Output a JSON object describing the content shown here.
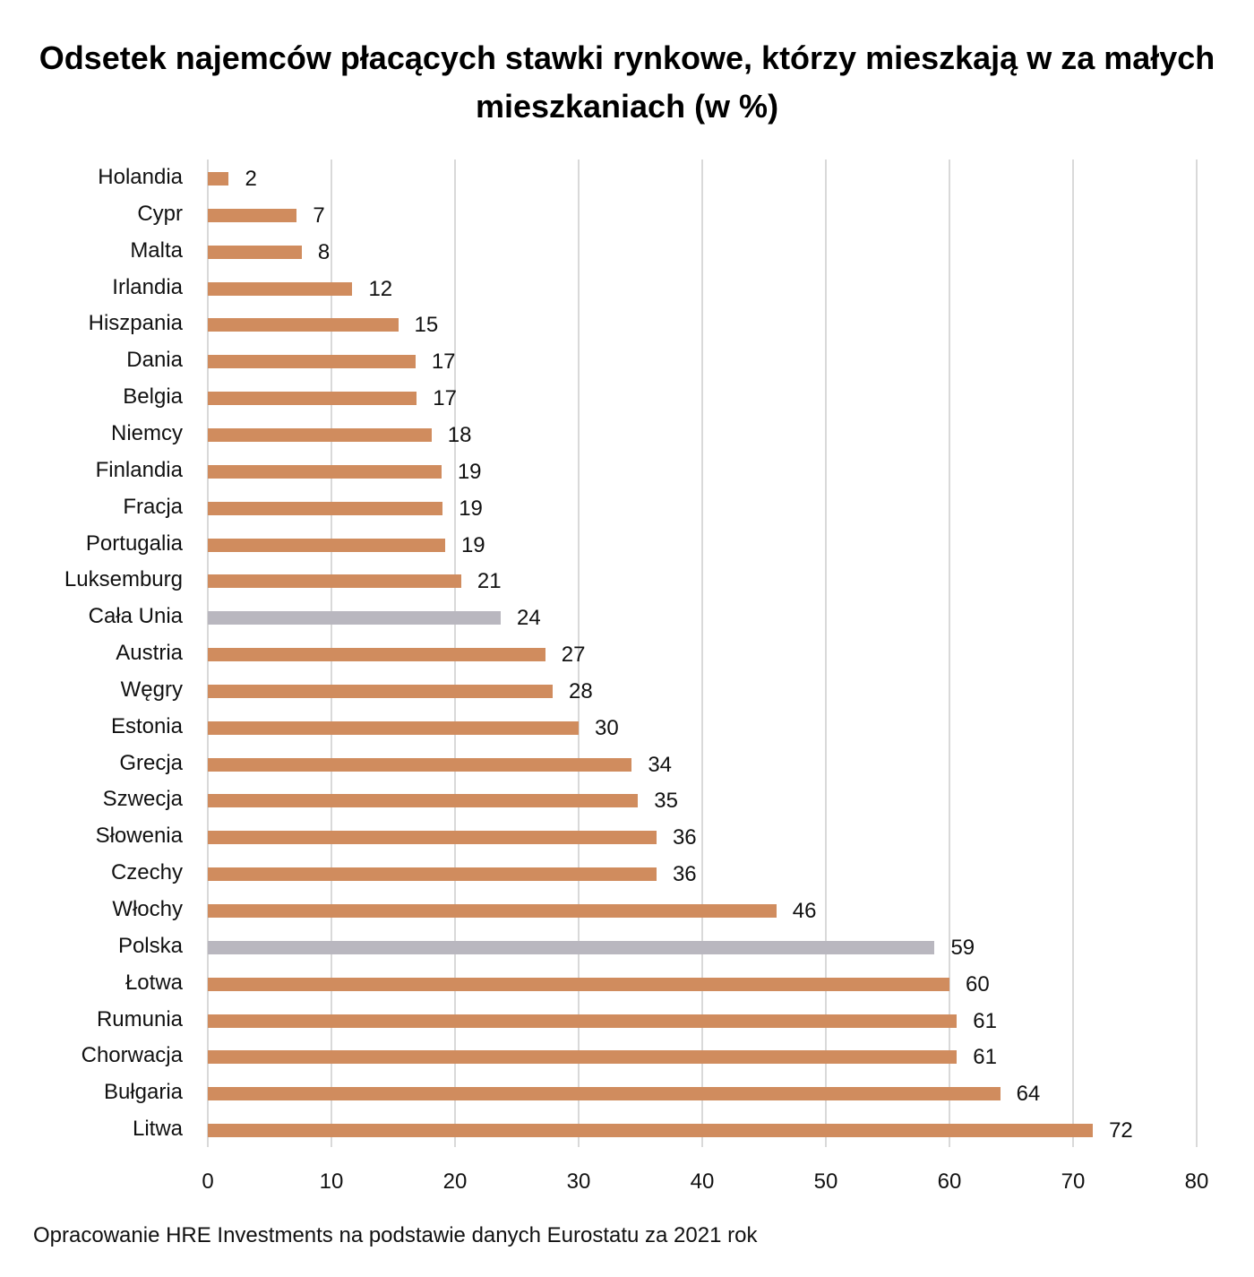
{
  "title": "Odsetek najemców płacących stawki rynkowe, którzy mieszkają w za małych mieszkaniach (w %)",
  "source": "Opracowanie HRE Investments na podstawie danych Eurostatu za 2021 rok",
  "colors": {
    "default": "#D08C5E",
    "highlight": "#B9B7BF",
    "grid": "#D9D9D9"
  },
  "chart_data": {
    "type": "bar",
    "orientation": "horizontal",
    "title": "Odsetek najemców płacących stawki rynkowe, którzy mieszkają w za małych mieszkaniach (w %)",
    "xlabel": "",
    "ylabel": "",
    "xlim": [
      0,
      80
    ],
    "xticks": [
      0,
      10,
      20,
      30,
      40,
      50,
      60,
      70,
      80
    ],
    "grid": true,
    "legend": null,
    "categories": [
      "Holandia",
      "Cypr",
      "Malta",
      "Irlandia",
      "Hiszpania",
      "Dania",
      "Belgia",
      "Niemcy",
      "Finlandia",
      "Fracja",
      "Portugalia",
      "Luksemburg",
      "Cała Unia",
      "Austria",
      "Węgry",
      "Estonia",
      "Grecja",
      "Szwecja",
      "Słowenia",
      "Czechy",
      "Włochy",
      "Polska",
      "Łotwa",
      "Rumunia",
      "Chorwacja",
      "Bułgaria",
      "Litwa"
    ],
    "values": [
      2,
      7,
      8,
      12,
      15,
      17,
      17,
      18,
      19,
      19,
      19,
      21,
      24,
      27,
      28,
      30,
      34,
      35,
      36,
      36,
      46,
      59,
      60,
      61,
      61,
      64,
      72
    ],
    "bar_lengths_estimated": [
      1.7,
      7.2,
      7.6,
      11.7,
      15.4,
      16.8,
      16.9,
      18.1,
      18.9,
      19.0,
      19.2,
      20.5,
      23.7,
      27.3,
      27.9,
      30.0,
      34.3,
      34.8,
      36.3,
      36.3,
      46.0,
      58.8,
      60.0,
      60.6,
      60.6,
      64.1,
      71.6
    ],
    "highlighted": [
      "Cała Unia",
      "Polska"
    ],
    "data_labels": [
      "2",
      "7",
      "8",
      "12",
      "15",
      "17",
      "17",
      "18",
      "19",
      "19",
      "19",
      "21",
      "24",
      "27",
      "28",
      "30",
      "34",
      "35",
      "36",
      "36",
      "46",
      "59",
      "60",
      "61",
      "61",
      "64",
      "72"
    ]
  }
}
